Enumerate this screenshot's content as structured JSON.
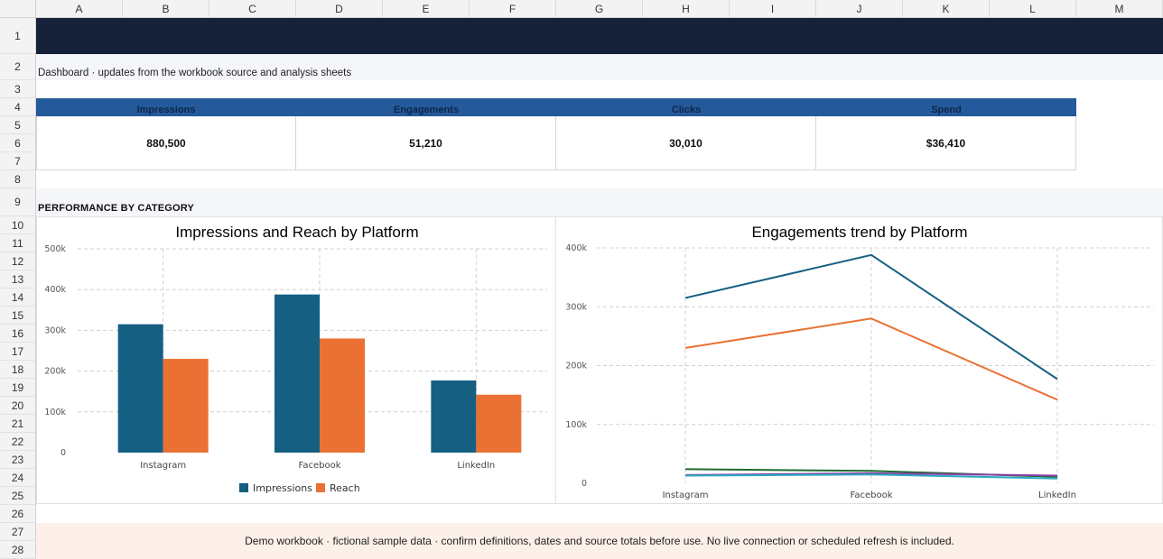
{
  "sheet": {
    "columns": [
      "A",
      "B",
      "C",
      "D",
      "E",
      "F",
      "G",
      "H",
      "I",
      "J",
      "K",
      "L",
      "M"
    ],
    "rows": [
      "1",
      "2",
      "3",
      "4",
      "5",
      "6",
      "7",
      "8",
      "9",
      "10",
      "11",
      "12",
      "13",
      "14",
      "15",
      "16",
      "17",
      "18",
      "19",
      "20",
      "21",
      "22",
      "23",
      "24",
      "25",
      "26",
      "27",
      "28"
    ]
  },
  "dashboard": {
    "subtitle": "Dashboard · updates from the workbook source and analysis sheets",
    "section_title": "PERFORMANCE BY CATEGORY",
    "footer": "Demo workbook · fictional sample data · confirm definitions, dates and source totals before use. No live connection or scheduled refresh is included."
  },
  "kpis": [
    {
      "label": "Impressions",
      "value": "880,500"
    },
    {
      "label": "Engagements",
      "value": "51,210"
    },
    {
      "label": "Clicks",
      "value": "30,010"
    },
    {
      "label": "Spend",
      "value": "$36,410"
    }
  ],
  "colors": {
    "impressions": "#155f83",
    "reach": "#ea7133",
    "engagements": "#1f8a5a",
    "clicks": "#8a3fa8",
    "spend": "#2aa9c0"
  },
  "chart_data": [
    {
      "type": "bar",
      "title": "Impressions and Reach by Platform",
      "categories": [
        "Instagram",
        "Facebook",
        "LinkedIn"
      ],
      "series": [
        {
          "name": "Impressions",
          "values": [
            315000,
            388000,
            177000
          ]
        },
        {
          "name": "Reach",
          "values": [
            230000,
            280000,
            142000
          ]
        }
      ],
      "ylim": [
        0,
        500000
      ],
      "yticks": [
        0,
        100000,
        200000,
        300000,
        400000,
        500000
      ],
      "ytick_labels": [
        "0",
        "100k",
        "200k",
        "300k",
        "400k",
        "500k"
      ],
      "grid": true,
      "legend": "bottom"
    },
    {
      "type": "line",
      "title": "Engagements trend by Platform",
      "categories": [
        "Instagram",
        "Facebook",
        "LinkedIn"
      ],
      "series": [
        {
          "values": [
            315000,
            388000,
            177000
          ],
          "color": "#155f83"
        },
        {
          "values": [
            230000,
            280000,
            142000
          ],
          "color": "#ea7133"
        },
        {
          "values": [
            24000,
            21000,
            11000
          ],
          "color": "#1f6b2e"
        },
        {
          "values": [
            14000,
            17000,
            13000
          ],
          "color": "#8a3fa8"
        },
        {
          "values": [
            13000,
            15000,
            8000
          ],
          "color": "#2aa9c0"
        }
      ],
      "ylim": [
        0,
        400000
      ],
      "yticks": [
        0,
        100000,
        200000,
        300000,
        400000
      ],
      "ytick_labels": [
        "0",
        "100k",
        "200k",
        "300k",
        "400k"
      ],
      "grid": true
    }
  ]
}
